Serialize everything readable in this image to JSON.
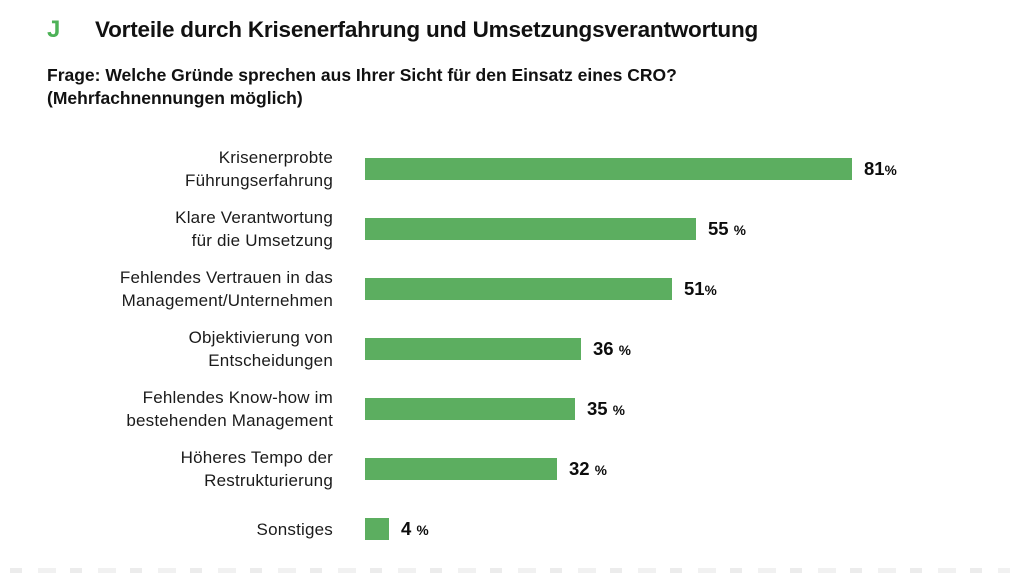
{
  "header": {
    "marker": "J",
    "title": "Vorteile durch Krisenerfahrung und Umsetzungsverantwortung",
    "question_line1": "Frage: Welche Gründe sprechen aus Ihrer Sicht für den Einsatz eines CRO?",
    "question_line2": "(Mehrfachnennungen möglich)"
  },
  "colors": {
    "marker_green": "#4DB257",
    "bar_green": "#5CAE60",
    "text_black": "#141414"
  },
  "chart_data": {
    "type": "bar",
    "orientation": "horizontal",
    "title": "Vorteile durch Krisenerfahrung und Umsetzungsverantwortung",
    "subtitle": "Frage: Welche Gründe sprechen aus Ihrer Sicht für den Einsatz eines CRO? (Mehrfachnennungen möglich)",
    "categories": [
      "Krisenerprobte Führungserfahrung",
      "Klare Verantwortung für die Umsetzung",
      "Fehlendes Vertrauen in das Management/Unternehmen",
      "Objektivierung von Entscheidungen",
      "Fehlendes Know-how im bestehenden Management",
      "Höheres Tempo der Restrukturierung",
      "Sonstiges"
    ],
    "category_lines": [
      [
        "Krisenerprobte",
        "Führungserfahrung"
      ],
      [
        "Klare Verantwortung",
        "für die Umsetzung"
      ],
      [
        "Fehlendes Vertrauen in das",
        "Management/Unternehmen"
      ],
      [
        "Objektivierung von",
        "Entscheidungen"
      ],
      [
        "Fehlendes Know-how im",
        "bestehenden Management"
      ],
      [
        "Höheres Tempo der",
        "Restrukturierung"
      ],
      [
        "Sonstiges"
      ]
    ],
    "values": [
      81,
      55,
      51,
      36,
      35,
      32,
      4
    ],
    "value_labels": [
      "81%",
      "55 %",
      "51%",
      "36 %",
      "35 %",
      "32 %",
      "4 %"
    ],
    "unit": "%",
    "xlim": [
      0,
      100
    ],
    "grid": false,
    "axes_visible": false,
    "legend": "none",
    "bar_color": "#5CAE60"
  }
}
